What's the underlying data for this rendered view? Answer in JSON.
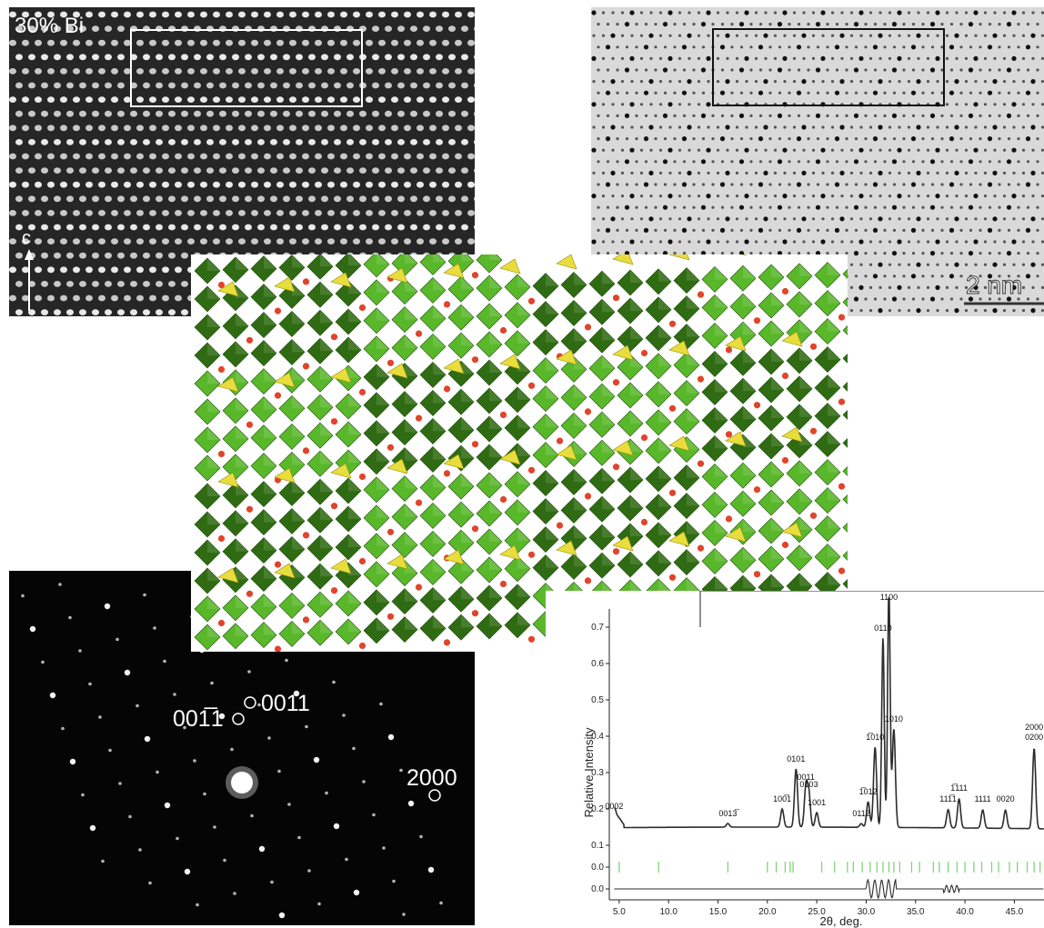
{
  "stem_panel": {
    "label": "30% Bi",
    "axis_label": "c"
  },
  "hrtem_panel": {
    "scale_bar_label": "2 nm"
  },
  "saed_panel": {
    "spot_labels": [
      {
        "text": "001̅1"
      },
      {
        "text": "0011"
      },
      {
        "text": "2000"
      }
    ]
  },
  "colors": {
    "octahedra_dark": "#2f6b12",
    "octahedra_light": "#59b82a",
    "tetrahedra": "#e8dd3c",
    "cation_spheres": "#e1442b",
    "calc_line": "#2c2c2c",
    "bragg_ticks": "#7fd67a"
  },
  "chart_data": {
    "type": "line",
    "title": "",
    "xlabel": "2θ, deg.",
    "ylabel": "Relative Intensity",
    "xlim": [
      4.0,
      48.0
    ],
    "ylim": [
      -0.05,
      0.75
    ],
    "x_ticks": [
      "5.0",
      "10.0",
      "15.0",
      "20.0",
      "25.0",
      "30.0",
      "35.0",
      "40.0",
      "45.0"
    ],
    "x_tick_values": [
      5,
      10,
      15,
      20,
      25,
      30,
      35,
      40,
      45
    ],
    "y_ticks": [
      "0.0",
      "0.0",
      "0.1",
      "0.2",
      "0.3",
      "0.4",
      "0.5",
      "0.6",
      "0.7"
    ],
    "y_tick_values": [
      -0.02,
      0.04,
      0.1,
      0.2,
      0.3,
      0.4,
      0.5,
      0.6,
      0.7
    ],
    "background_level": 0.15,
    "bragg_tick_level": 0.04,
    "difference_level": -0.02,
    "peaks": [
      {
        "x": 4.5,
        "y": 0.18,
        "label": "0002"
      },
      {
        "x": 16.0,
        "y": 0.16,
        "label": "0013̅"
      },
      {
        "x": 21.5,
        "y": 0.2,
        "label": "100̅1"
      },
      {
        "x": 22.9,
        "y": 0.31,
        "label": "0101"
      },
      {
        "x": 23.9,
        "y": 0.26,
        "label": "0011"
      },
      {
        "x": 24.2,
        "y": 0.24,
        "label": "0103"
      },
      {
        "x": 25.0,
        "y": 0.19,
        "label": "1001"
      },
      {
        "x": 29.5,
        "y": 0.16,
        "label": "0112"
      },
      {
        "x": 30.2,
        "y": 0.22,
        "label": "1̅012"
      },
      {
        "x": 30.9,
        "y": 0.37,
        "label": "1̅010"
      },
      {
        "x": 31.7,
        "y": 0.67,
        "label": "0110"
      },
      {
        "x": 32.3,
        "y": 0.81,
        "label": "1100"
      },
      {
        "x": 32.8,
        "y": 0.42,
        "label": "1010"
      },
      {
        "x": 38.3,
        "y": 0.2,
        "label": "111̅1"
      },
      {
        "x": 39.4,
        "y": 0.23,
        "label": "1̅111"
      },
      {
        "x": 41.8,
        "y": 0.2,
        "label": "1111"
      },
      {
        "x": 44.1,
        "y": 0.2,
        "label": "0020"
      },
      {
        "x": 47.0,
        "y": 0.37,
        "label": "2000 0200"
      }
    ],
    "bragg_positions": [
      5.0,
      9.0,
      16.0,
      20.0,
      20.9,
      21.8,
      22.3,
      22.6,
      25.5,
      26.8,
      28.1,
      28.7,
      29.6,
      30.4,
      31.1,
      31.7,
      32.3,
      32.8,
      33.4,
      34.6,
      35.4,
      36.8,
      37.4,
      38.3,
      39.2,
      40.0,
      40.9,
      41.7,
      42.7,
      43.4,
      44.5,
      45.3,
      46.3,
      47.0,
      47.6
    ]
  }
}
